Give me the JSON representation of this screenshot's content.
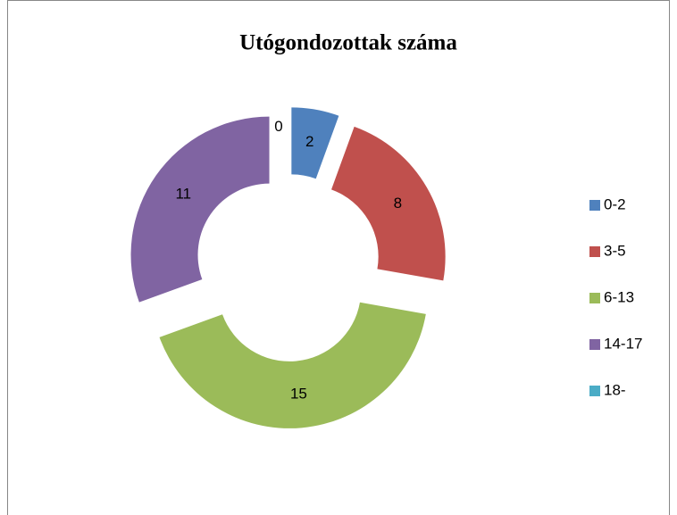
{
  "chart_data": {
    "type": "donut",
    "title": "Utógondozottak száma",
    "categories": [
      "0-2",
      "3-5",
      "6-13",
      "14-17",
      "18-"
    ],
    "values": [
      2,
      8,
      15,
      11,
      0
    ],
    "colors": [
      "#4f81bd",
      "#c0504d",
      "#9bbb59",
      "#8064a2",
      "#4bacc6"
    ],
    "legend": "right"
  }
}
